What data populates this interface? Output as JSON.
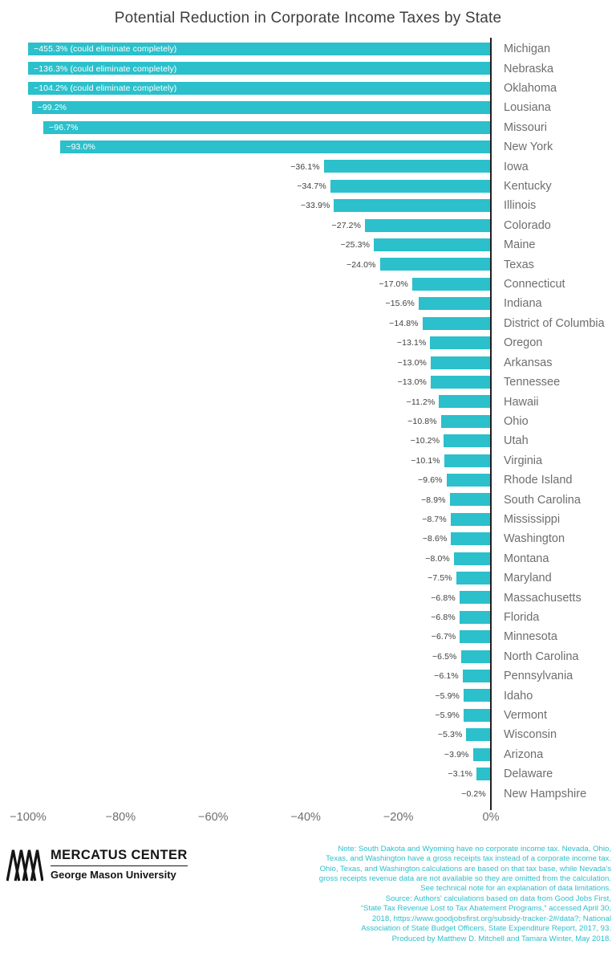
{
  "title": "Potential Reduction in Corporate Income Taxes by State",
  "chart_data": {
    "type": "bar",
    "orientation": "horizontal",
    "bar_color": "#2bc0cb",
    "axis_color": "#231f20",
    "xlim": [
      -100,
      0
    ],
    "x_tick_labels": [
      "−100%",
      "−80%",
      "−60%",
      "−40%",
      "−20%",
      "0%"
    ],
    "x_tick_values": [
      -100,
      -80,
      -60,
      -40,
      -20,
      0
    ],
    "series": [
      {
        "state": "Michigan",
        "value": -455.3,
        "label": "−455.3%  (could eliminate completely)"
      },
      {
        "state": "Nebraska",
        "value": -136.3,
        "label": "−136.3%  (could eliminate completely)"
      },
      {
        "state": "Oklahoma",
        "value": -104.2,
        "label": "−104.2%  (could eliminate completely)"
      },
      {
        "state": "Lousiana",
        "value": -99.2,
        "label": "−99.2%"
      },
      {
        "state": "Missouri",
        "value": -96.7,
        "label": "−96.7%"
      },
      {
        "state": "New York",
        "value": -93.0,
        "label": "−93.0%"
      },
      {
        "state": "Iowa",
        "value": -36.1,
        "label": "−36.1%"
      },
      {
        "state": "Kentucky",
        "value": -34.7,
        "label": "−34.7%"
      },
      {
        "state": "Illinois",
        "value": -33.9,
        "label": "−33.9%"
      },
      {
        "state": "Colorado",
        "value": -27.2,
        "label": "−27.2%"
      },
      {
        "state": "Maine",
        "value": -25.3,
        "label": "−25.3%"
      },
      {
        "state": "Texas",
        "value": -24.0,
        "label": "−24.0%"
      },
      {
        "state": "Connecticut",
        "value": -17.0,
        "label": "−17.0%"
      },
      {
        "state": "Indiana",
        "value": -15.6,
        "label": "−15.6%"
      },
      {
        "state": "District of Columbia",
        "value": -14.8,
        "label": "−14.8%"
      },
      {
        "state": "Oregon",
        "value": -13.1,
        "label": "−13.1%"
      },
      {
        "state": "Arkansas",
        "value": -13.0,
        "label": "−13.0%"
      },
      {
        "state": "Tennessee",
        "value": -13.0,
        "label": "−13.0%"
      },
      {
        "state": "Hawaii",
        "value": -11.2,
        "label": "−11.2%"
      },
      {
        "state": "Ohio",
        "value": -10.8,
        "label": "−10.8%"
      },
      {
        "state": "Utah",
        "value": -10.2,
        "label": "−10.2%"
      },
      {
        "state": "Virginia",
        "value": -10.1,
        "label": "−10.1%"
      },
      {
        "state": "Rhode Island",
        "value": -9.6,
        "label": "−9.6%"
      },
      {
        "state": "South Carolina",
        "value": -8.9,
        "label": "−8.9%"
      },
      {
        "state": "Mississippi",
        "value": -8.7,
        "label": "−8.7%"
      },
      {
        "state": "Washington",
        "value": -8.6,
        "label": "−8.6%"
      },
      {
        "state": "Montana",
        "value": -8.0,
        "label": "−8.0%"
      },
      {
        "state": "Maryland",
        "value": -7.5,
        "label": "−7.5%"
      },
      {
        "state": "Massachusetts",
        "value": -6.8,
        "label": "−6.8%"
      },
      {
        "state": "Florida",
        "value": -6.8,
        "label": "−6.8%"
      },
      {
        "state": "Minnesota",
        "value": -6.7,
        "label": "−6.7%"
      },
      {
        "state": "North Carolina",
        "value": -6.5,
        "label": "−6.5%"
      },
      {
        "state": "Pennsylvania",
        "value": -6.1,
        "label": "−6.1%"
      },
      {
        "state": "Idaho",
        "value": -5.9,
        "label": "−5.9%"
      },
      {
        "state": "Vermont",
        "value": -5.9,
        "label": "−5.9%"
      },
      {
        "state": "Wisconsin",
        "value": -5.3,
        "label": "−5.3%"
      },
      {
        "state": "Arizona",
        "value": -3.9,
        "label": "−3.9%"
      },
      {
        "state": "Delaware",
        "value": -3.1,
        "label": "−3.1%"
      },
      {
        "state": "New Hampshire",
        "value": -0.2,
        "label": "−0.2%"
      }
    ]
  },
  "footer": {
    "logo": {
      "name": "MERCATUS CENTER",
      "sub": "George Mason University"
    },
    "note_color": "#2bbfcb",
    "notes": [
      "Note: South Dakota and Wyoming have no corporate income tax. Nevada, Ohio,",
      "Texas, and Washington have a gross receipts tax instead of a corporate income tax.",
      "Ohio, Texas, and Washington calculations  are based on that tax base, while Nevada's",
      "gross receipts revenue data are not available  so they are omitted from the calculation.",
      "See technical note for an explanation of data limitations.",
      "Source: Authors' calculations  based on data from Good Jobs First,",
      "“State Tax Revenue Lost to Tax Abatement Programs,” accessed April 30,",
      "2018, https://www.goodjobsfirst.org/subsidy-tracker-2#/data?; National",
      "Association of State Budget Officers, State Expenditure Report, 2017, 93.",
      "Produced by Matthew D. Mitchell and Tamara Winter, May 2018."
    ]
  }
}
